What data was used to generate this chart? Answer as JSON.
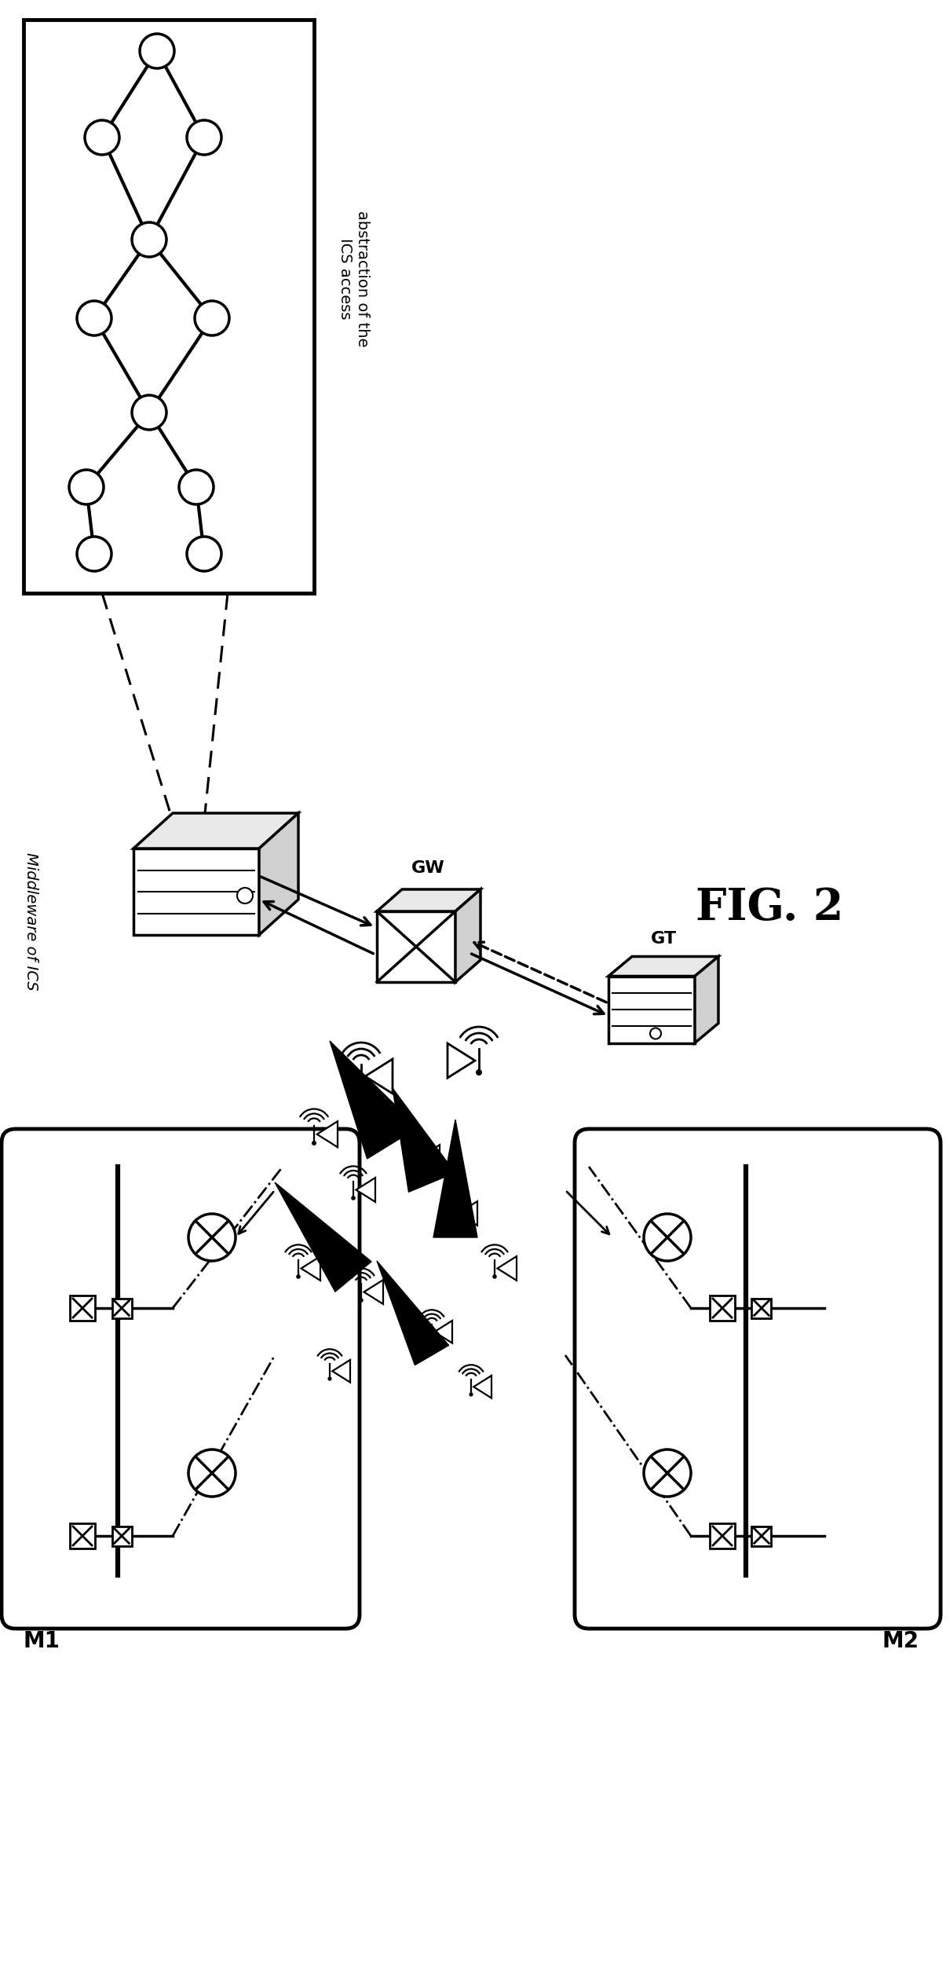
{
  "bg_color": "#ffffff",
  "title": "FIG. 2",
  "tree_label_line1": "abstraction of the",
  "tree_label_line2": "ICS access",
  "middleware_label": "Middleware of ICS",
  "gw_label": "GW",
  "gt_label": "GT",
  "m1_label": "M1",
  "m2_label": "M2",
  "figsize": [
    12.1,
    25.05
  ],
  "dpi": 100,
  "xlim": [
    0,
    12.1
  ],
  "ylim": [
    0,
    25.05
  ]
}
